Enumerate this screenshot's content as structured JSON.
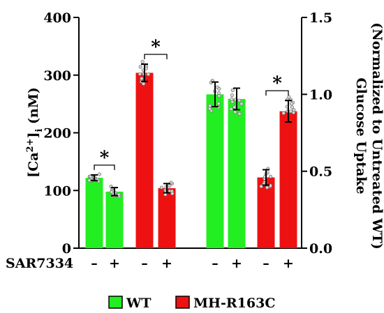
{
  "chart_data": {
    "type": "bar",
    "left_axis": {
      "label_main": "[Ca",
      "label_sup": "2+",
      "label_close": "]",
      "label_sub": "i",
      "label_unit": " (nM)",
      "ylim": [
        0,
        400
      ],
      "ticks": [
        "0",
        "100",
        "200",
        "300",
        "400"
      ]
    },
    "right_axis": {
      "label_line1": "Glucose Uptake",
      "label_line2": "(Normalized to Untreated WT)",
      "ylim": [
        0,
        1.5
      ],
      "ticks": [
        "0.0",
        "0.5",
        "1.0",
        "1.5"
      ]
    },
    "treatment_label": "SAR7334",
    "treatment_signs": [
      "–",
      "+",
      "–",
      "+",
      "–",
      "+",
      "–",
      "+"
    ],
    "significance_marker": "*",
    "legend": [
      {
        "name": "WT",
        "color": "#22ee22"
      },
      {
        "name": "MH-R163C",
        "color": "#ee1111"
      }
    ],
    "bars": [
      {
        "axis": "left",
        "group": "WT",
        "treatment": "–",
        "value": 122,
        "err": 5
      },
      {
        "axis": "left",
        "group": "WT",
        "treatment": "+",
        "value": 98,
        "err": 7
      },
      {
        "axis": "left",
        "group": "MH-R163C",
        "treatment": "–",
        "value": 304,
        "err": 15
      },
      {
        "axis": "left",
        "group": "MH-R163C",
        "treatment": "+",
        "value": 104,
        "err": 8
      },
      {
        "axis": "right",
        "group": "WT",
        "treatment": "–",
        "value": 1.0,
        "err": 0.08
      },
      {
        "axis": "right",
        "group": "WT",
        "treatment": "+",
        "value": 0.97,
        "err": 0.07
      },
      {
        "axis": "right",
        "group": "MH-R163C",
        "treatment": "–",
        "value": 0.46,
        "err": 0.05
      },
      {
        "axis": "right",
        "group": "MH-R163C",
        "treatment": "+",
        "value": 0.89,
        "err": 0.07
      }
    ],
    "significance_pairs": [
      [
        0,
        1
      ],
      [
        2,
        3
      ],
      [
        6,
        7
      ]
    ]
  }
}
